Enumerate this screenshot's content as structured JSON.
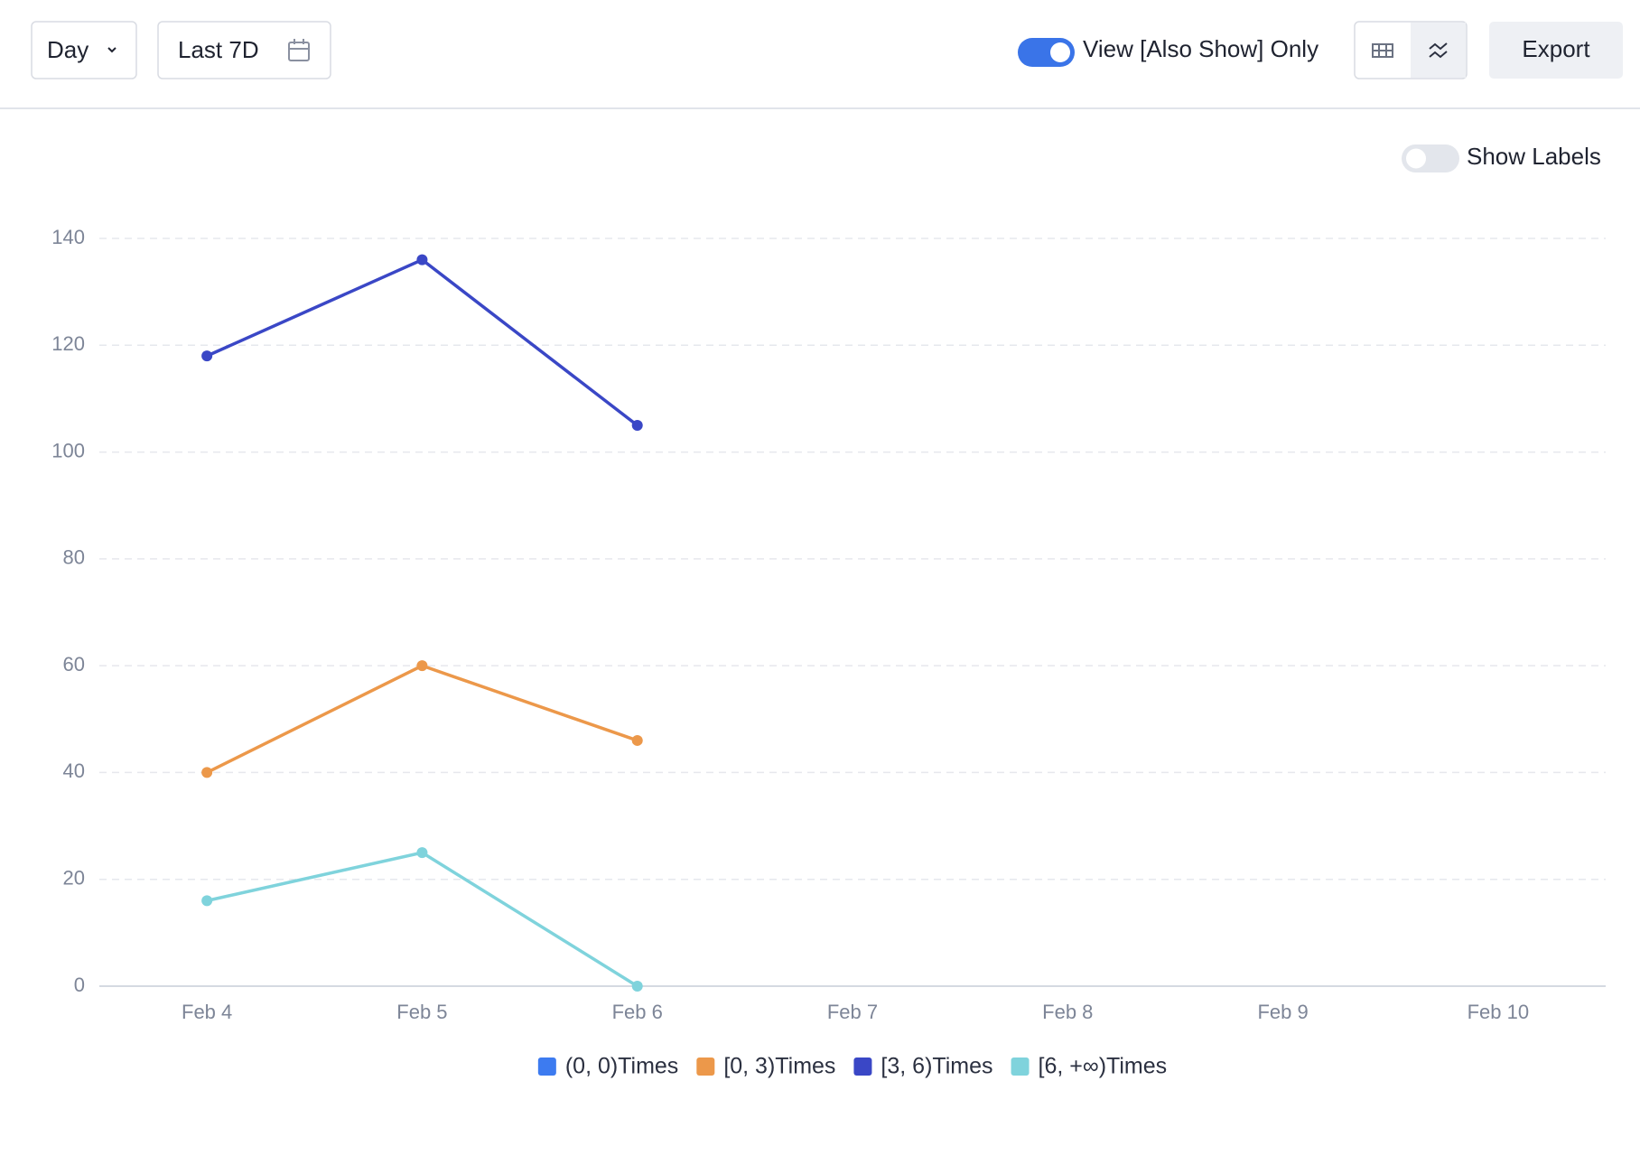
{
  "toolbar": {
    "granularity": "Day",
    "range": "Last 7D",
    "toggle": "View [Also Show] Only",
    "export": "Export"
  },
  "controls": {
    "show_labels": "Show Labels"
  },
  "chart_data": {
    "type": "line",
    "categories": [
      "Feb 4",
      "Feb 5",
      "Feb 6",
      "Feb 7",
      "Feb 8",
      "Feb 9",
      "Feb 10"
    ],
    "series": [
      {
        "name": "(0, 0)Times",
        "color": "#3d7bf0",
        "values": [
          null,
          null,
          null,
          null,
          null,
          null,
          null
        ]
      },
      {
        "name": "[0, 3)Times",
        "color": "#ec984a",
        "values": [
          40,
          60,
          46,
          null,
          null,
          null,
          null
        ]
      },
      {
        "name": "[3, 6)Times",
        "color": "#3a47c6",
        "values": [
          118,
          136,
          105,
          null,
          null,
          null,
          null
        ]
      },
      {
        "name": "[6, +∞)Times",
        "color": "#7fd3dc",
        "values": [
          16,
          25,
          0,
          null,
          null,
          null,
          null
        ]
      }
    ],
    "ylim": [
      0,
      140
    ],
    "yticks": [
      0,
      20,
      40,
      60,
      80,
      100,
      120,
      140
    ],
    "grid": true,
    "legend": "bottom"
  }
}
